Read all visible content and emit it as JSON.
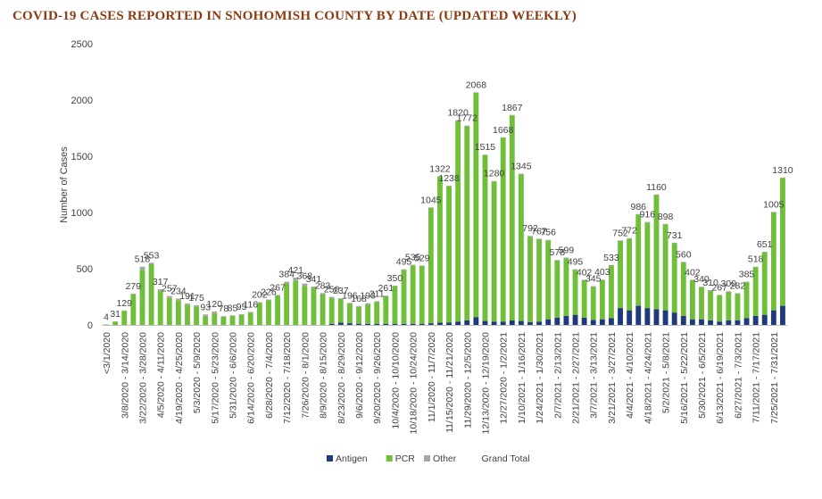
{
  "chart_data": {
    "type": "bar",
    "stacked": true,
    "title": "COVID-19 CASES REPORTED IN SNOHOMISH COUNTY BY DATE (UPDATED WEEKLY)",
    "ylabel": "Number of Cases",
    "xlabel": "",
    "ylim": [
      0,
      2500
    ],
    "yticks": [
      0,
      500,
      1000,
      1500,
      2000,
      2500
    ],
    "grid": false,
    "legend_position": "bottom",
    "colors": {
      "Antigen": "#1f3a7a",
      "PCR": "#6fbf3a",
      "Other": "#a6a6a6",
      "Grand Total": "#ffffff",
      "title": "#8b3a12",
      "text": "#404040",
      "axis": "#bfbfbf"
    },
    "x_tick_labels": [
      "<3/1/2020",
      "3/8/2020 - 3/14/2020",
      "3/22/2020 - 3/28/2020",
      "4/5/2020 - 4/11/2020",
      "4/19/2020 - 4/25/2020",
      "5/3/2020 - 5/9/2020",
      "5/17/2020 - 5/23/2020",
      "5/31/2020 - 6/6/2020",
      "6/14/2020 - 6/20/2020",
      "6/28/2020 - 7/4/2020",
      "7/12/2020 - 7/18/2020",
      "7/26/2020 - 8/1/2020",
      "8/9/2020 - 8/15/2020",
      "8/23/2020 - 8/29/2020",
      "9/6/2020 - 9/12/2020",
      "9/20/2020 - 9/26/2020",
      "10/4/2020 - 10/10/2020",
      "10/18/2020 - 10/24/2020",
      "11/1/2020 - 11/7/2020",
      "11/15/2020 - 11/21/2020",
      "11/29/2020 - 12/5/2020",
      "12/13/2020 - 12/19/2020",
      "12/27/2020 - 1/2/2021",
      "1/10/2021 - 1/16/2021",
      "1/24/2021 - 1/30/2021",
      "2/7/2021 - 2/13/2021",
      "2/21/2021 - 2/27/2021",
      "3/7/2021 - 3/13/2021",
      "3/21/2021 - 3/27/2021",
      "4/4/2021 - 4/10/2021",
      "4/18/2021 - 4/24/2021",
      "5/2/2021 - 5/8/2021",
      "5/16/2021 - 5/22/2021",
      "5/30/2021 - 6/5/2021",
      "6/13/2021 - 6/19/2021",
      "6/27/2021 - 7/3/2021",
      "7/11/2021 - 7/17/2021",
      "7/25/2021 - 7/31/2021"
    ],
    "totals": [
      4,
      31,
      129,
      279,
      518,
      553,
      317,
      257,
      234,
      191,
      175,
      93,
      120,
      78,
      85,
      95,
      116,
      202,
      226,
      267,
      384,
      421,
      368,
      341,
      283,
      250,
      237,
      196,
      168,
      193,
      211,
      261,
      350,
      495,
      535,
      529,
      1045,
      1322,
      1238,
      1820,
      1772,
      2068,
      1515,
      1280,
      1668,
      1867,
      1345,
      792,
      767,
      756,
      578,
      599,
      495,
      402,
      345,
      403,
      533,
      752,
      772,
      986,
      916,
      1160,
      898,
      731,
      560,
      402,
      340,
      310,
      267,
      300,
      282,
      385,
      518,
      651,
      1005,
      1310
    ],
    "series": [
      {
        "name": "Antigen",
        "values": [
          0,
          0,
          0,
          0,
          0,
          0,
          0,
          0,
          0,
          0,
          0,
          0,
          0,
          0,
          0,
          0,
          0,
          0,
          0,
          0,
          0,
          0,
          0,
          0,
          0,
          10,
          20,
          15,
          10,
          10,
          10,
          10,
          10,
          10,
          10,
          10,
          15,
          20,
          20,
          30,
          40,
          70,
          35,
          30,
          30,
          40,
          35,
          25,
          30,
          50,
          65,
          80,
          90,
          65,
          45,
          50,
          60,
          150,
          130,
          170,
          150,
          140,
          130,
          110,
          80,
          50,
          50,
          40,
          30,
          40,
          40,
          60,
          80,
          90,
          130,
          170
        ]
      },
      {
        "name": "PCR",
        "values": [
          4,
          30,
          125,
          270,
          490,
          540,
          300,
          240,
          220,
          180,
          165,
          75,
          105,
          72,
          80,
          88,
          108,
          195,
          218,
          258,
          370,
          395,
          345,
          330,
          270,
          230,
          210,
          175,
          150,
          175,
          195,
          245,
          335,
          480,
          520,
          515,
          1025,
          1298,
          1213,
          1785,
          1727,
          1993,
          1475,
          1245,
          1633,
          1822,
          1305,
          762,
          732,
          701,
          508,
          514,
          400,
          332,
          295,
          348,
          468,
          597,
          637,
          811,
          761,
          1015,
          763,
          616,
          475,
          347,
          285,
          265,
          232,
          255,
          237,
          320,
          433,
          556,
          870,
          1135
        ]
      },
      {
        "name": "Other",
        "values": [
          0,
          1,
          4,
          9,
          28,
          13,
          17,
          17,
          14,
          11,
          10,
          18,
          15,
          6,
          5,
          7,
          8,
          7,
          8,
          9,
          14,
          26,
          23,
          11,
          13,
          10,
          7,
          6,
          8,
          8,
          6,
          6,
          5,
          5,
          5,
          4,
          5,
          4,
          5,
          5,
          5,
          5,
          5,
          5,
          5,
          5,
          5,
          5,
          5,
          5,
          5,
          5,
          5,
          5,
          5,
          5,
          5,
          5,
          5,
          5,
          5,
          5,
          5,
          5,
          5,
          5,
          5,
          5,
          5,
          5,
          5,
          5,
          5,
          5,
          5,
          5
        ]
      },
      {
        "name": "Grand Total",
        "values": []
      }
    ]
  }
}
